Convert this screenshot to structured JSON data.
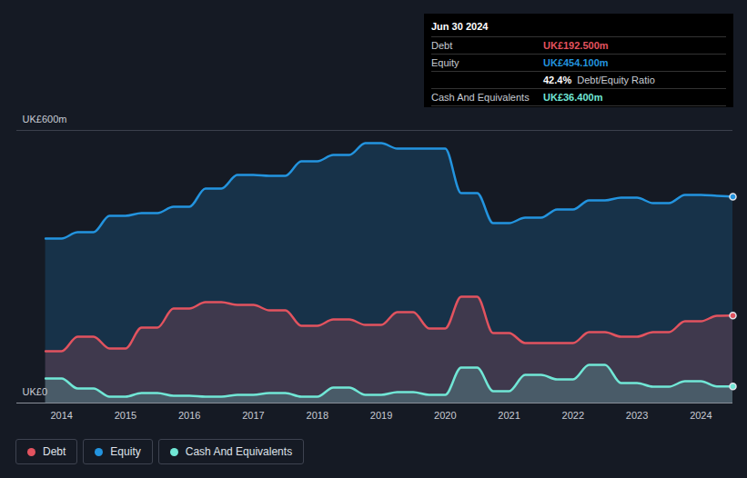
{
  "chart_data": {
    "type": "area",
    "x": [
      2013.75,
      2014,
      2014.25,
      2014.5,
      2014.75,
      2015,
      2015.25,
      2015.5,
      2015.75,
      2016,
      2016.25,
      2016.5,
      2016.75,
      2017,
      2017.25,
      2017.5,
      2017.75,
      2018,
      2018.25,
      2018.5,
      2018.75,
      2019,
      2019.25,
      2019.5,
      2019.75,
      2020,
      2020.25,
      2020.5,
      2020.75,
      2021,
      2021.25,
      2021.5,
      2021.75,
      2022,
      2022.25,
      2022.5,
      2022.75,
      2023,
      2023.25,
      2023.5,
      2023.75,
      2024,
      2024.25,
      2024.5
    ],
    "series": [
      {
        "name": "Equity",
        "color": "#2394df",
        "values": [
          362,
          362,
          376,
          376,
          412,
          412,
          418,
          418,
          432,
          432,
          472,
          472,
          502,
          502,
          500,
          500,
          532,
          532,
          546,
          546,
          572,
          572,
          560,
          560,
          560,
          560,
          462,
          462,
          396,
          396,
          408,
          408,
          426,
          426,
          446,
          446,
          452,
          452,
          440,
          440,
          458,
          458,
          456,
          454.1
        ]
      },
      {
        "name": "Debt",
        "color": "#e2535f",
        "values": [
          114,
          114,
          146,
          146,
          120,
          120,
          166,
          166,
          208,
          208,
          222,
          222,
          216,
          216,
          204,
          204,
          170,
          170,
          184,
          184,
          172,
          172,
          200,
          200,
          164,
          164,
          234,
          234,
          154,
          154,
          132,
          132,
          132,
          132,
          156,
          156,
          146,
          146,
          156,
          156,
          180,
          180,
          192,
          192.5
        ]
      },
      {
        "name": "Cash And Equivalents",
        "color": "#71e7d6",
        "values": [
          54,
          54,
          32,
          32,
          14,
          14,
          22,
          22,
          16,
          16,
          14,
          14,
          18,
          18,
          22,
          22,
          14,
          14,
          34,
          34,
          18,
          18,
          24,
          24,
          18,
          18,
          78,
          78,
          26,
          26,
          62,
          62,
          52,
          52,
          84,
          84,
          44,
          44,
          36,
          36,
          48,
          48,
          36.4,
          36.4
        ]
      }
    ],
    "xlim": [
      2013.3,
      2024.5
    ],
    "xticks": [
      2014,
      2015,
      2016,
      2017,
      2018,
      2019,
      2020,
      2021,
      2022,
      2023,
      2024
    ],
    "ylim": [
      0,
      600
    ],
    "yticks": [
      {
        "value": 0,
        "label": "UK£0"
      },
      {
        "value": 600,
        "label": "UK£600m"
      }
    ],
    "grid": true,
    "legend": "bottom-left",
    "annotation": {
      "title": "Jun 30 2024",
      "rows": [
        {
          "label": "Debt",
          "value": "UK£192.500m"
        },
        {
          "label": "Equity",
          "value": "UK£454.100m"
        },
        {
          "value": "42.4%",
          "note": "Debt/Equity Ratio"
        },
        {
          "label": "Cash And Equivalents",
          "value": "UK£36.400m"
        }
      ]
    }
  }
}
